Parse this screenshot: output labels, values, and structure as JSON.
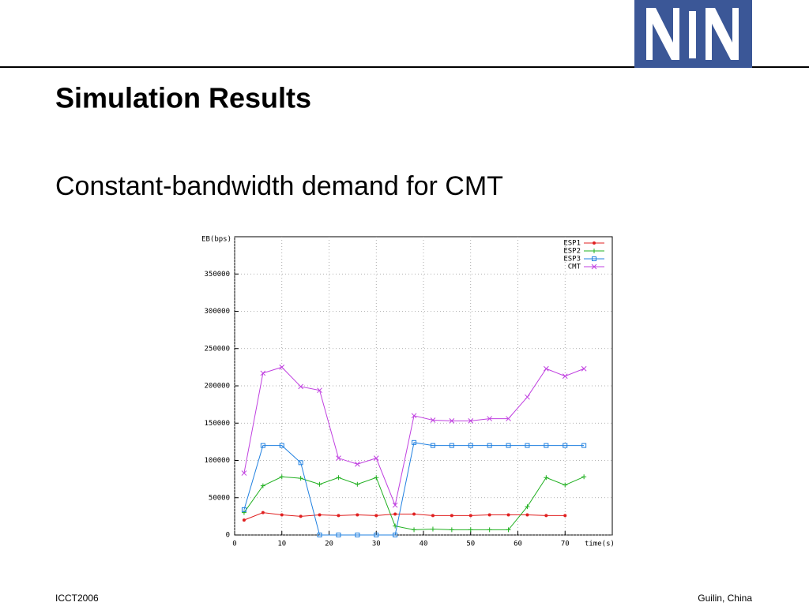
{
  "slide": {
    "title": "Simulation Results",
    "subtitle": "Constant-bandwidth demand for CMT",
    "footer_left": "ICCT2006",
    "footer_right": "Guilin, China"
  },
  "chart_data": {
    "type": "line",
    "ylabel": "EB(bps)",
    "xlabel": "time(s)",
    "xlim": [
      0,
      80
    ],
    "ylim": [
      0,
      400000
    ],
    "xticks": [
      0,
      10,
      20,
      30,
      40,
      50,
      60,
      70
    ],
    "yticks": [
      0,
      50000,
      100000,
      150000,
      200000,
      250000,
      300000,
      350000
    ],
    "grid": true,
    "legend": "top-right",
    "x": [
      2,
      6,
      10,
      14,
      18,
      22,
      26,
      30,
      34,
      38,
      42,
      46,
      50,
      54,
      58,
      62,
      66,
      70,
      74
    ],
    "series": [
      {
        "name": "ESP1",
        "color": "#e02020",
        "marker": "circle",
        "values": [
          20000,
          30000,
          27000,
          25000,
          27000,
          26000,
          27000,
          26000,
          28000,
          28000,
          26000,
          26000,
          26000,
          27000,
          27000,
          27000,
          26000,
          26000,
          null
        ]
      },
      {
        "name": "ESP2",
        "color": "#20b020",
        "marker": "plus",
        "values": [
          30000,
          66000,
          78000,
          76000,
          68000,
          77000,
          68000,
          77000,
          12000,
          7000,
          8000,
          7000,
          7000,
          7000,
          7000,
          38000,
          77000,
          67000,
          78000
        ]
      },
      {
        "name": "ESP3",
        "color": "#2080e0",
        "marker": "square",
        "values": [
          34000,
          120000,
          120000,
          97000,
          0,
          0,
          0,
          0,
          0,
          124000,
          120000,
          120000,
          120000,
          120000,
          120000,
          120000,
          120000,
          120000,
          120000
        ]
      },
      {
        "name": "CMT",
        "color": "#c040e0",
        "marker": "x",
        "values": [
          83000,
          217000,
          225000,
          199000,
          194000,
          103000,
          95000,
          103000,
          40000,
          160000,
          154000,
          153000,
          153000,
          156000,
          156000,
          185000,
          223000,
          213000,
          223000
        ]
      }
    ]
  }
}
